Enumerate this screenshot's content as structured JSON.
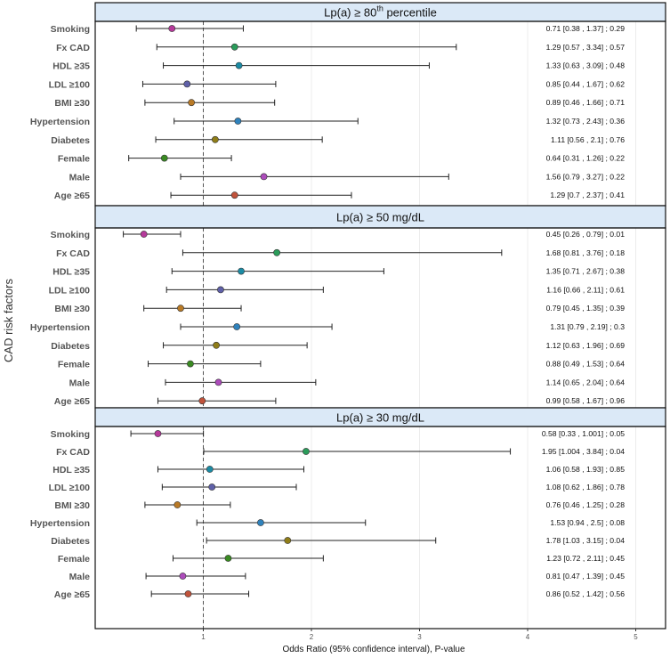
{
  "chart_data": {
    "type": "forest",
    "xlabel": "Odds Ratio (95% confidence interval), P-value",
    "ylabel": "CAD risk factors",
    "xlim": [
      0.0,
      5.2
    ],
    "xticks": [
      "1",
      "2",
      "3",
      "4",
      "5"
    ],
    "reference_line": 1,
    "colors": {
      "Smoking": "#b5399a",
      "Fx CAD": "#2a9c5a",
      "HDL ≥35": "#1b8ba4",
      "LDL ≥100": "#5f60a8",
      "BMI ≥30": "#b97a26",
      "Hypertension": "#2f82bc",
      "Diabetes": "#8f7d18",
      "Female": "#3a8a22",
      "Male": "#ad4cbb",
      "Age ≥65": "#c1533b"
    },
    "panels": [
      {
        "title": "Lp(a) ≥ 80",
        "title_sup": "th",
        "title_suffix": " percentile",
        "rows": [
          {
            "label": "Smoking",
            "or": 0.71,
            "lo": 0.38,
            "hi": 1.37,
            "text": "0.71 [0.38 , 1.37] ; 0.29"
          },
          {
            "label": "Fx CAD",
            "or": 1.29,
            "lo": 0.57,
            "hi": 3.34,
            "text": "1.29 [0.57 , 3.34] ; 0.57"
          },
          {
            "label": "HDL ≥35",
            "or": 1.33,
            "lo": 0.63,
            "hi": 3.09,
            "text": "1.33 [0.63 , 3.09] ; 0.48"
          },
          {
            "label": "LDL ≥100",
            "or": 0.85,
            "lo": 0.44,
            "hi": 1.67,
            "text": "0.85 [0.44 , 1.67] ; 0.62"
          },
          {
            "label": "BMI ≥30",
            "or": 0.89,
            "lo": 0.46,
            "hi": 1.66,
            "text": "0.89 [0.46 , 1.66] ; 0.71"
          },
          {
            "label": "Hypertension",
            "or": 1.32,
            "lo": 0.73,
            "hi": 2.43,
            "text": "1.32 [0.73 , 2.43] ; 0.36"
          },
          {
            "label": "Diabetes",
            "or": 1.11,
            "lo": 0.56,
            "hi": 2.1,
            "text": "1.11 [0.56 , 2.1] ; 0.76"
          },
          {
            "label": "Female",
            "or": 0.64,
            "lo": 0.31,
            "hi": 1.26,
            "text": "0.64 [0.31 , 1.26] ; 0.22"
          },
          {
            "label": "Male",
            "or": 1.56,
            "lo": 0.79,
            "hi": 3.27,
            "text": "1.56 [0.79 , 3.27] ; 0.22"
          },
          {
            "label": "Age ≥65",
            "or": 1.29,
            "lo": 0.7,
            "hi": 2.37,
            "text": "1.29 [0.7 , 2.37] ; 0.41"
          }
        ]
      },
      {
        "title": "Lp(a) ≥ 50 mg/dL",
        "title_sup": "",
        "title_suffix": "",
        "rows": [
          {
            "label": "Smoking",
            "or": 0.45,
            "lo": 0.26,
            "hi": 0.79,
            "text": "0.45 [0.26 , 0.79] ; 0.01"
          },
          {
            "label": "Fx CAD",
            "or": 1.68,
            "lo": 0.81,
            "hi": 3.76,
            "text": "1.68 [0.81 , 3.76] ; 0.18"
          },
          {
            "label": "HDL ≥35",
            "or": 1.35,
            "lo": 0.71,
            "hi": 2.67,
            "text": "1.35 [0.71 , 2.67] ; 0.38"
          },
          {
            "label": "LDL ≥100",
            "or": 1.16,
            "lo": 0.66,
            "hi": 2.11,
            "text": "1.16 [0.66 , 2.11] ; 0.61"
          },
          {
            "label": "BMI ≥30",
            "or": 0.79,
            "lo": 0.45,
            "hi": 1.35,
            "text": "0.79 [0.45 , 1.35] ; 0.39"
          },
          {
            "label": "Hypertension",
            "or": 1.31,
            "lo": 0.79,
            "hi": 2.19,
            "text": "1.31 [0.79 , 2.19] ; 0.3"
          },
          {
            "label": "Diabetes",
            "or": 1.12,
            "lo": 0.63,
            "hi": 1.96,
            "text": "1.12 [0.63 , 1.96] ; 0.69"
          },
          {
            "label": "Female",
            "or": 0.88,
            "lo": 0.49,
            "hi": 1.53,
            "text": "0.88 [0.49 , 1.53] ; 0.64"
          },
          {
            "label": "Male",
            "or": 1.14,
            "lo": 0.65,
            "hi": 2.04,
            "text": "1.14 [0.65 , 2.04] ; 0.64"
          },
          {
            "label": "Age ≥65",
            "or": 0.99,
            "lo": 0.58,
            "hi": 1.67,
            "text": "0.99 [0.58 , 1.67] ; 0.96"
          }
        ]
      },
      {
        "title": "Lp(a) ≥ 30 mg/dL",
        "title_sup": "",
        "title_suffix": "",
        "rows": [
          {
            "label": "Smoking",
            "or": 0.58,
            "lo": 0.33,
            "hi": 1.001,
            "text": "0.58 [0.33 , 1.001] ; 0.05"
          },
          {
            "label": "Fx CAD",
            "or": 1.95,
            "lo": 1.004,
            "hi": 3.84,
            "text": "1.95 [1.004 , 3.84] ; 0.04"
          },
          {
            "label": "HDL ≥35",
            "or": 1.06,
            "lo": 0.58,
            "hi": 1.93,
            "text": "1.06 [0.58 , 1.93] ; 0.85"
          },
          {
            "label": "LDL ≥100",
            "or": 1.08,
            "lo": 0.62,
            "hi": 1.86,
            "text": "1.08 [0.62 , 1.86] ; 0.78"
          },
          {
            "label": "BMI ≥30",
            "or": 0.76,
            "lo": 0.46,
            "hi": 1.25,
            "text": "0.76 [0.46 , 1.25] ; 0.28"
          },
          {
            "label": "Hypertension",
            "or": 1.53,
            "lo": 0.94,
            "hi": 2.5,
            "text": "1.53 [0.94 , 2.5] ; 0.08"
          },
          {
            "label": "Diabetes",
            "or": 1.78,
            "lo": 1.03,
            "hi": 3.15,
            "text": "1.78 [1.03 , 3.15] ; 0.04"
          },
          {
            "label": "Female",
            "or": 1.23,
            "lo": 0.72,
            "hi": 2.11,
            "text": "1.23 [0.72 , 2.11] ; 0.45"
          },
          {
            "label": "Male",
            "or": 0.81,
            "lo": 0.47,
            "hi": 1.39,
            "text": "0.81 [0.47 , 1.39] ; 0.45"
          },
          {
            "label": "Age ≥65",
            "or": 0.86,
            "lo": 0.52,
            "hi": 1.42,
            "text": "0.86 [0.52 , 1.42] ; 0.56"
          }
        ]
      }
    ]
  }
}
